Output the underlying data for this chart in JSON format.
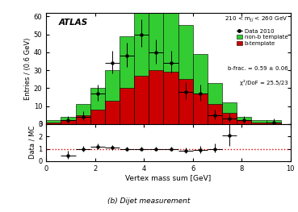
{
  "title_atlas": "ATLAS",
  "xlabel": "Vertex mass sum [GeV]",
  "ylabel_main": "Entries / (0.6 GeV)",
  "ylabel_ratio": "Data / MC",
  "bin_edges": [
    0.0,
    0.6,
    1.2,
    1.8,
    2.4,
    3.0,
    3.6,
    4.2,
    4.8,
    5.4,
    6.0,
    6.6,
    7.2,
    7.8,
    8.4,
    9.0,
    9.6
  ],
  "nonb_template": [
    1,
    2,
    6,
    12,
    17,
    29,
    38,
    42,
    38,
    30,
    22,
    12,
    6,
    2,
    1,
    1
  ],
  "b_template": [
    1,
    2,
    5,
    8,
    13,
    20,
    27,
    30,
    29,
    25,
    17,
    11,
    6,
    2,
    1,
    1
  ],
  "data_x": [
    0.9,
    1.5,
    2.1,
    2.7,
    3.3,
    3.9,
    4.5,
    5.1,
    5.7,
    6.3,
    6.9,
    7.5,
    8.1,
    9.3
  ],
  "data_y": [
    2,
    4,
    17,
    34,
    38,
    50,
    40,
    34,
    18,
    17,
    5,
    3,
    2,
    1
  ],
  "data_yerr_lo": [
    1.4,
    2.0,
    4.1,
    5.8,
    6.2,
    7.1,
    6.3,
    5.8,
    4.2,
    4.1,
    2.2,
    1.7,
    1.4,
    1.0
  ],
  "data_yerr_hi": [
    2.5,
    3.0,
    5.1,
    6.8,
    7.2,
    8.1,
    7.3,
    6.8,
    5.2,
    5.1,
    3.2,
    2.7,
    2.4,
    2.0
  ],
  "data_xerr": 0.3,
  "ratio_x": [
    0.9,
    1.5,
    2.1,
    2.7,
    3.3,
    3.9,
    4.5,
    5.1,
    5.7,
    6.3,
    6.9,
    7.5
  ],
  "ratio_y": [
    0.42,
    1.0,
    1.15,
    1.1,
    1.0,
    1.0,
    1.0,
    1.0,
    0.85,
    0.9,
    1.0,
    2.1
  ],
  "ratio_yerr_lo": [
    0.25,
    0.2,
    0.2,
    0.18,
    0.15,
    0.12,
    0.12,
    0.15,
    0.2,
    0.25,
    0.3,
    0.85
  ],
  "ratio_yerr_hi": [
    0.4,
    0.25,
    0.25,
    0.22,
    0.18,
    0.15,
    0.15,
    0.18,
    0.25,
    0.3,
    0.4,
    1.1
  ],
  "ratio_xerr": 0.3,
  "nonb_color": "#33cc33",
  "b_color": "#cc0000",
  "data_color": "black",
  "ratio_line_color": "#dd0000",
  "b_frac_text": "b-frac. = 0.59 ± 0.06",
  "chi2_text": "χ²/DoF = 25.5/23",
  "xmin": 0,
  "xmax": 10,
  "ymin": 0,
  "ymax": 62,
  "yticks": [
    0,
    10,
    20,
    30,
    40,
    50,
    60
  ],
  "ratio_ymin": 0,
  "ratio_ymax": 3,
  "ratio_yticks": [
    0,
    1,
    2,
    3
  ],
  "xticks": [
    0,
    2,
    4,
    6,
    8,
    10
  ],
  "caption": "(b) Dijet measurement"
}
